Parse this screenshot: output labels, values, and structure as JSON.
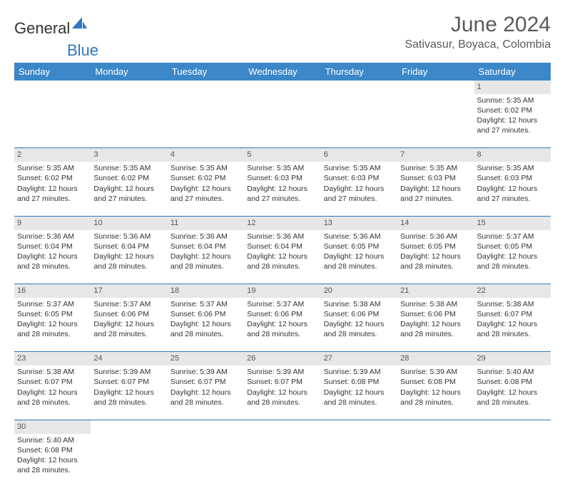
{
  "logo": {
    "text1": "General",
    "text2": "Blue",
    "sail_color": "#2d78bf"
  },
  "title": "June 2024",
  "location": "Sativasur, Boyaca, Colombia",
  "colors": {
    "header_bg": "#3b87c8",
    "header_fg": "#ffffff",
    "daynum_bg": "#e7e7e7",
    "rule": "#2d78bf",
    "text": "#333333"
  },
  "weekdays": [
    "Sunday",
    "Monday",
    "Tuesday",
    "Wednesday",
    "Thursday",
    "Friday",
    "Saturday"
  ],
  "weeks": [
    [
      null,
      null,
      null,
      null,
      null,
      null,
      {
        "d": "1",
        "sr": "5:35 AM",
        "ss": "6:02 PM",
        "dl": "12 hours and 27 minutes."
      }
    ],
    [
      {
        "d": "2",
        "sr": "5:35 AM",
        "ss": "6:02 PM",
        "dl": "12 hours and 27 minutes."
      },
      {
        "d": "3",
        "sr": "5:35 AM",
        "ss": "6:02 PM",
        "dl": "12 hours and 27 minutes."
      },
      {
        "d": "4",
        "sr": "5:35 AM",
        "ss": "6:02 PM",
        "dl": "12 hours and 27 minutes."
      },
      {
        "d": "5",
        "sr": "5:35 AM",
        "ss": "6:03 PM",
        "dl": "12 hours and 27 minutes."
      },
      {
        "d": "6",
        "sr": "5:35 AM",
        "ss": "6:03 PM",
        "dl": "12 hours and 27 minutes."
      },
      {
        "d": "7",
        "sr": "5:35 AM",
        "ss": "6:03 PM",
        "dl": "12 hours and 27 minutes."
      },
      {
        "d": "8",
        "sr": "5:35 AM",
        "ss": "6:03 PM",
        "dl": "12 hours and 27 minutes."
      }
    ],
    [
      {
        "d": "9",
        "sr": "5:36 AM",
        "ss": "6:04 PM",
        "dl": "12 hours and 28 minutes."
      },
      {
        "d": "10",
        "sr": "5:36 AM",
        "ss": "6:04 PM",
        "dl": "12 hours and 28 minutes."
      },
      {
        "d": "11",
        "sr": "5:36 AM",
        "ss": "6:04 PM",
        "dl": "12 hours and 28 minutes."
      },
      {
        "d": "12",
        "sr": "5:36 AM",
        "ss": "6:04 PM",
        "dl": "12 hours and 28 minutes."
      },
      {
        "d": "13",
        "sr": "5:36 AM",
        "ss": "6:05 PM",
        "dl": "12 hours and 28 minutes."
      },
      {
        "d": "14",
        "sr": "5:36 AM",
        "ss": "6:05 PM",
        "dl": "12 hours and 28 minutes."
      },
      {
        "d": "15",
        "sr": "5:37 AM",
        "ss": "6:05 PM",
        "dl": "12 hours and 28 minutes."
      }
    ],
    [
      {
        "d": "16",
        "sr": "5:37 AM",
        "ss": "6:05 PM",
        "dl": "12 hours and 28 minutes."
      },
      {
        "d": "17",
        "sr": "5:37 AM",
        "ss": "6:06 PM",
        "dl": "12 hours and 28 minutes."
      },
      {
        "d": "18",
        "sr": "5:37 AM",
        "ss": "6:06 PM",
        "dl": "12 hours and 28 minutes."
      },
      {
        "d": "19",
        "sr": "5:37 AM",
        "ss": "6:06 PM",
        "dl": "12 hours and 28 minutes."
      },
      {
        "d": "20",
        "sr": "5:38 AM",
        "ss": "6:06 PM",
        "dl": "12 hours and 28 minutes."
      },
      {
        "d": "21",
        "sr": "5:38 AM",
        "ss": "6:06 PM",
        "dl": "12 hours and 28 minutes."
      },
      {
        "d": "22",
        "sr": "5:38 AM",
        "ss": "6:07 PM",
        "dl": "12 hours and 28 minutes."
      }
    ],
    [
      {
        "d": "23",
        "sr": "5:38 AM",
        "ss": "6:07 PM",
        "dl": "12 hours and 28 minutes."
      },
      {
        "d": "24",
        "sr": "5:39 AM",
        "ss": "6:07 PM",
        "dl": "12 hours and 28 minutes."
      },
      {
        "d": "25",
        "sr": "5:39 AM",
        "ss": "6:07 PM",
        "dl": "12 hours and 28 minutes."
      },
      {
        "d": "26",
        "sr": "5:39 AM",
        "ss": "6:07 PM",
        "dl": "12 hours and 28 minutes."
      },
      {
        "d": "27",
        "sr": "5:39 AM",
        "ss": "6:08 PM",
        "dl": "12 hours and 28 minutes."
      },
      {
        "d": "28",
        "sr": "5:39 AM",
        "ss": "6:08 PM",
        "dl": "12 hours and 28 minutes."
      },
      {
        "d": "29",
        "sr": "5:40 AM",
        "ss": "6:08 PM",
        "dl": "12 hours and 28 minutes."
      }
    ],
    [
      {
        "d": "30",
        "sr": "5:40 AM",
        "ss": "6:08 PM",
        "dl": "12 hours and 28 minutes."
      },
      null,
      null,
      null,
      null,
      null,
      null
    ]
  ],
  "labels": {
    "sunrise": "Sunrise:",
    "sunset": "Sunset:",
    "daylight": "Daylight:"
  }
}
